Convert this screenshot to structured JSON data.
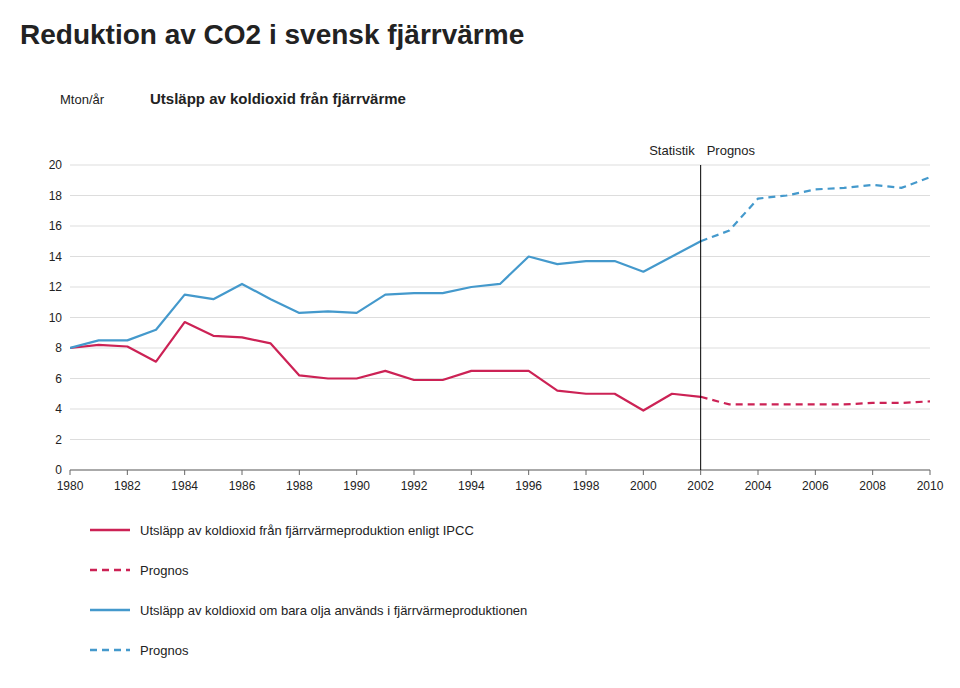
{
  "chart_data": {
    "type": "line",
    "title": "Reduktion av CO2 i svensk fjärrvärme",
    "subtitle": "Utsläpp av koldioxid från fjärrvärme",
    "y_label": "Mton/år",
    "vline": 2002,
    "vline_labels": [
      "Statistik",
      "Prognos"
    ],
    "x": [
      1980,
      1981,
      1982,
      1983,
      1984,
      1985,
      1986,
      1987,
      1988,
      1989,
      1990,
      1991,
      1992,
      1993,
      1994,
      1995,
      1996,
      1997,
      1998,
      1999,
      2000,
      2001,
      2002,
      2003,
      2004,
      2005,
      2006,
      2007,
      2008,
      2009,
      2010
    ],
    "series": [
      {
        "name": "Utsläpp av koldioxid från fjärrvärmeproduktion enligt IPCC",
        "color": "#cc2255",
        "line_style": "solid",
        "values": [
          8.0,
          8.2,
          8.1,
          7.1,
          9.7,
          8.8,
          8.7,
          8.3,
          6.2,
          6.0,
          6.0,
          6.5,
          5.9,
          5.9,
          6.5,
          6.5,
          6.5,
          5.2,
          5.0,
          5.0,
          3.9,
          5.0,
          4.8,
          null,
          null,
          null,
          null,
          null,
          null,
          null,
          null
        ]
      },
      {
        "name": "Prognos",
        "color": "#cc2255",
        "line_style": "dashed",
        "values": [
          null,
          null,
          null,
          null,
          null,
          null,
          null,
          null,
          null,
          null,
          null,
          null,
          null,
          null,
          null,
          null,
          null,
          null,
          null,
          null,
          null,
          null,
          4.8,
          4.3,
          4.3,
          4.3,
          4.3,
          4.3,
          4.4,
          4.4,
          4.5
        ]
      },
      {
        "name": "Utsläpp av koldioxid om bara olja används i fjärrvärmeproduktionen",
        "color": "#4499cc",
        "line_style": "solid",
        "values": [
          8.0,
          8.5,
          8.5,
          9.2,
          11.5,
          11.2,
          12.2,
          11.2,
          10.3,
          10.4,
          10.3,
          11.5,
          11.6,
          11.6,
          12.0,
          12.2,
          14.0,
          13.5,
          13.7,
          13.7,
          13.0,
          14.0,
          15.0,
          null,
          null,
          null,
          null,
          null,
          null,
          null,
          null
        ]
      },
      {
        "name": "Prognos",
        "color": "#4499cc",
        "line_style": "dashed",
        "values": [
          null,
          null,
          null,
          null,
          null,
          null,
          null,
          null,
          null,
          null,
          null,
          null,
          null,
          null,
          null,
          null,
          null,
          null,
          null,
          null,
          null,
          null,
          15.0,
          15.7,
          17.8,
          18.0,
          18.4,
          18.5,
          18.7,
          18.5,
          19.2
        ]
      }
    ],
    "xlim": [
      1980,
      2010
    ],
    "xticks": [
      1980,
      1982,
      1984,
      1986,
      1988,
      1990,
      1992,
      1994,
      1996,
      1998,
      2000,
      2002,
      2004,
      2006,
      2008,
      2010
    ],
    "ylim": [
      0,
      20
    ],
    "yticks": [
      0,
      2,
      4,
      6,
      8,
      10,
      12,
      14,
      16,
      18,
      20
    ],
    "grid": true,
    "legend": "bottom"
  }
}
